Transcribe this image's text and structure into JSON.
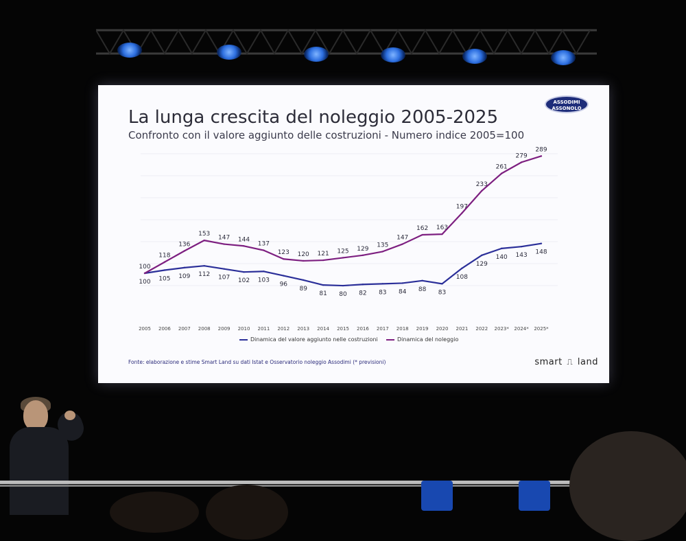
{
  "slide": {
    "title": "La lunga crescita del noleggio 2005-2025",
    "subtitle": "Confronto con il valore aggiunto delle costruzioni - Numero indice 2005=100",
    "logo_line1": "ASSODIMI",
    "logo_line2": "ASSONOLO",
    "source": "Fonte: elaborazione e stime Smart Land su dati Istat e Osservatorio noleggio Assodimi (* previsioni)",
    "brand_left": "smart",
    "brand_mark": "⎍",
    "brand_right": "land"
  },
  "chart_data": {
    "type": "line",
    "title": "La lunga crescita del noleggio 2005-2025",
    "subtitle": "Confronto con il valore aggiunto delle costruzioni - Numero indice 2005=100",
    "xlabel": "",
    "ylabel": "",
    "categories": [
      "2005",
      "2006",
      "2007",
      "2008",
      "2009",
      "2010",
      "2011",
      "2012",
      "2013",
      "2014",
      "2015",
      "2016",
      "2017",
      "2018",
      "2019",
      "2020",
      "2021",
      "2022",
      "2023*",
      "2024*",
      "2025*"
    ],
    "series": [
      {
        "name": "Dinamica del valore aggiunto nelle costruzioni",
        "color": "#2b2f99",
        "values": [
          100,
          105,
          109,
          112,
          107,
          102,
          103,
          96,
          89,
          81,
          80,
          82,
          83,
          84,
          88,
          83,
          108,
          129,
          140,
          143,
          148
        ],
        "labels": [
          "100",
          "105",
          "109",
          "112",
          "107",
          "102",
          "103",
          "96",
          "89",
          "81",
          "80",
          "82",
          "83",
          "84",
          "88",
          "83",
          "108",
          "129",
          "140",
          "143",
          "148"
        ]
      },
      {
        "name": "Dinamica del noleggio",
        "color": "#7d1f80",
        "values": [
          100,
          118,
          136,
          153,
          147,
          144,
          137,
          123,
          120,
          121,
          125,
          129,
          135,
          147,
          162,
          163,
          197,
          233,
          261,
          279,
          289
        ],
        "labels": [
          "100",
          "118",
          "136",
          "153",
          "147",
          "144",
          "137",
          "123",
          "120",
          "121",
          "125",
          "129",
          "135",
          "147",
          "162",
          "163",
          "197",
          "233",
          "261",
          "279",
          "289"
        ]
      }
    ],
    "grid": true,
    "legend": "bottom-center"
  }
}
